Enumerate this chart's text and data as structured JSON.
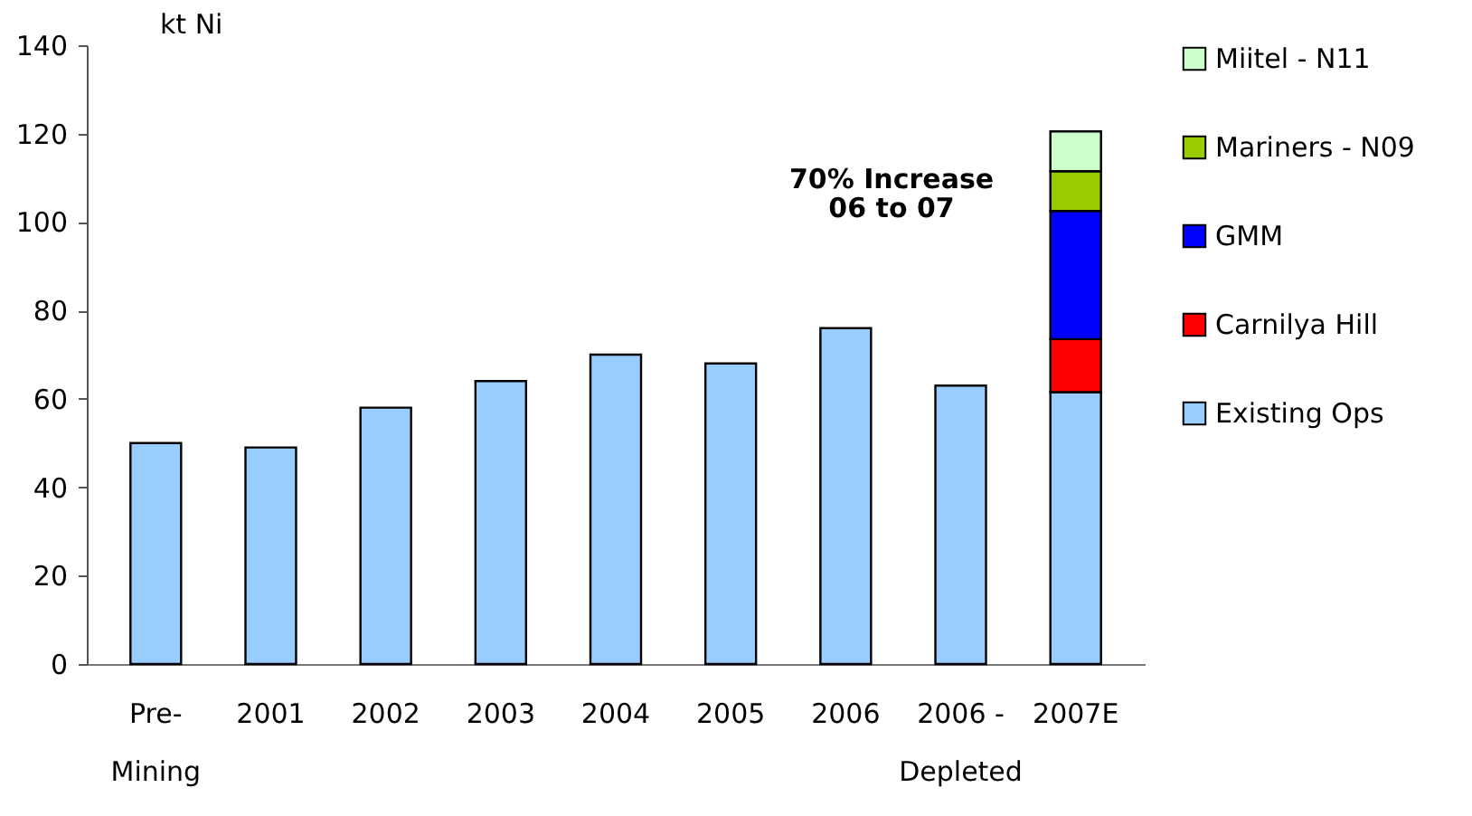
{
  "chart_data": {
    "type": "bar",
    "stacked": true,
    "ylabel": "kt Ni",
    "categories": [
      "Pre-\nMining",
      "2001",
      "2002",
      "2003",
      "2004",
      "2005",
      "2006",
      "2006 -\nDepleted",
      "2007E"
    ],
    "series": [
      {
        "name": "Existing Ops",
        "color": "#99ccff",
        "values": [
          50,
          49,
          58,
          64,
          70,
          68,
          76,
          63,
          61.5
        ]
      },
      {
        "name": "Carnilya Hill",
        "color": "#ff0000",
        "values": [
          null,
          null,
          null,
          null,
          null,
          null,
          null,
          null,
          12
        ]
      },
      {
        "name": "GMM",
        "color": "#0000ff",
        "values": [
          null,
          null,
          null,
          null,
          null,
          null,
          null,
          null,
          29
        ]
      },
      {
        "name": "Mariners - N09",
        "color": "#99cc00",
        "values": [
          null,
          null,
          null,
          null,
          null,
          null,
          null,
          null,
          9
        ]
      },
      {
        "name": "Miitel - N11",
        "color": "#ccffcc",
        "values": [
          null,
          null,
          null,
          null,
          null,
          null,
          null,
          null,
          9
        ]
      }
    ],
    "ylim": [
      0,
      140
    ],
    "yticks": [
      0,
      20,
      40,
      60,
      80,
      100,
      120,
      140
    ],
    "annotations": [
      "70% Increase",
      "06 to 07"
    ],
    "grid": false,
    "legend": "right"
  }
}
